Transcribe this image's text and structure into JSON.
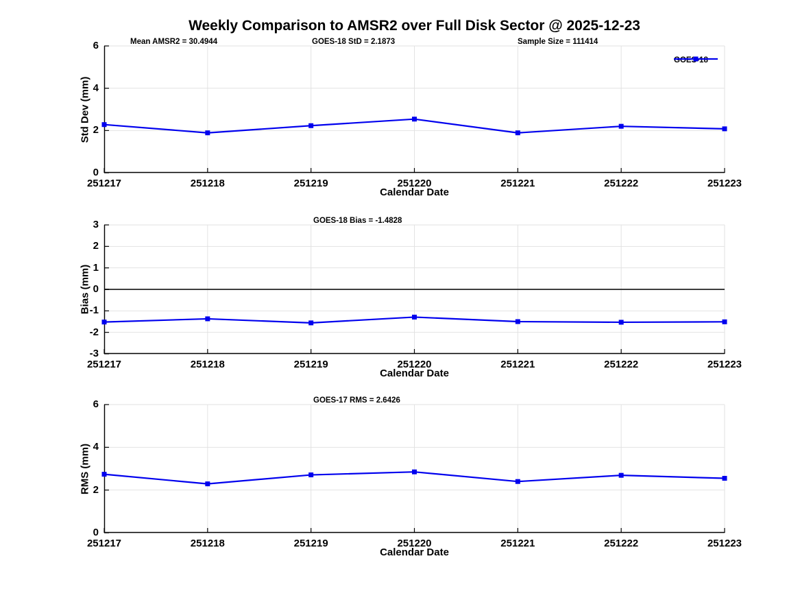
{
  "title": "Weekly Comparison to AMSR2 over Full Disk Sector @ 2025-12-23",
  "colors": {
    "series": "#0000EE",
    "grid": "#E2E2E2",
    "axis": "#000000",
    "zero_line": "#3C3C3C",
    "text": "#000000",
    "background": "#FFFFFF"
  },
  "chart_data": [
    {
      "type": "line",
      "name": "std-dev",
      "categories": [
        "251217",
        "251218",
        "251219",
        "251220",
        "251221",
        "251222",
        "251223"
      ],
      "values": [
        2.28,
        1.89,
        2.23,
        2.54,
        1.89,
        2.2,
        2.08
      ],
      "ylabel": "Std Dev (mm)",
      "xlabel": "Calendar Date",
      "ylim": [
        0,
        6
      ],
      "yticks": [
        0,
        2,
        4,
        6
      ],
      "grid": true,
      "zero_line": false,
      "legend": "GOES-18",
      "legend_position": "top-right-outside",
      "annotations": [
        {
          "text": "Mean AMSR2 = 30.4944",
          "x": 38
        },
        {
          "text": "GOES-18 StD = 2.1873",
          "x": 303
        },
        {
          "text": "Sample Size = 111414",
          "x": 603
        }
      ]
    },
    {
      "type": "line",
      "name": "bias",
      "categories": [
        "251217",
        "251218",
        "251219",
        "251220",
        "251221",
        "251222",
        "251223"
      ],
      "values": [
        -1.52,
        -1.37,
        -1.56,
        -1.29,
        -1.5,
        -1.53,
        -1.51
      ],
      "ylabel": "Bias (mm)",
      "xlabel": "Calendar Date",
      "ylim": [
        -3,
        3
      ],
      "yticks": [
        3,
        2,
        1,
        0,
        -1,
        -2,
        -3
      ],
      "grid": true,
      "zero_line": true,
      "annotations": [
        {
          "text": "GOES-18 Bias  = -1.4828",
          "x": 305
        }
      ]
    },
    {
      "type": "line",
      "name": "rms",
      "categories": [
        "251217",
        "251218",
        "251219",
        "251220",
        "251221",
        "251222",
        "251223"
      ],
      "values": [
        2.74,
        2.29,
        2.71,
        2.85,
        2.4,
        2.69,
        2.55
      ],
      "ylabel": "RMS (mm)",
      "xlabel": "Calendar Date",
      "ylim": [
        0,
        6
      ],
      "yticks": [
        0,
        2,
        4,
        6
      ],
      "grid": true,
      "zero_line": false,
      "annotations": [
        {
          "text": "GOES-17 RMS = 2.6426",
          "x": 305
        }
      ]
    }
  ]
}
